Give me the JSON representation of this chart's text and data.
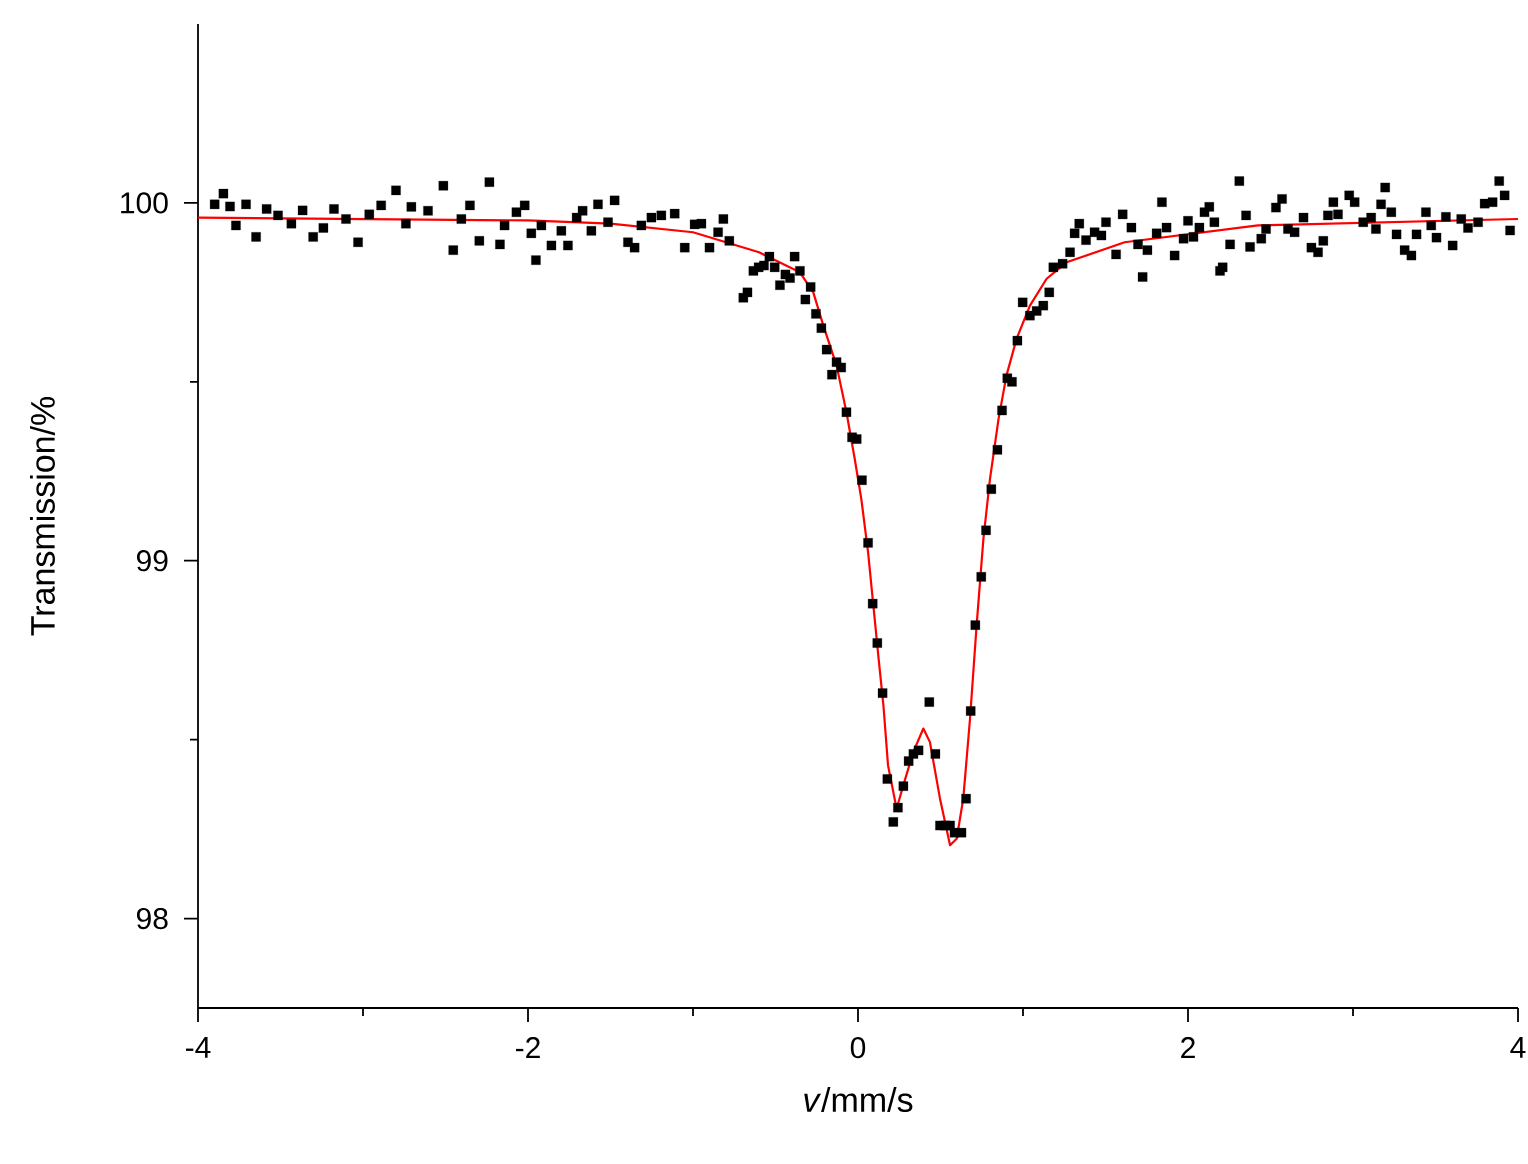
{
  "chart_data": {
    "type": "scatter",
    "xlabel": "*v*/mm/s",
    "ylabel": "Transmission/%",
    "xlim": [
      -4,
      4
    ],
    "ylim": [
      97.75,
      100.5
    ],
    "xticks": [
      -4,
      {
        "value": -3,
        "label": null
      },
      -2,
      {
        "value": -1,
        "label": null
      },
      0,
      {
        "value": 1,
        "label": null
      },
      2,
      {
        "value": 3,
        "label": null
      },
      4
    ],
    "yticks": [
      98,
      {
        "value": 98.5,
        "label": null
      },
      99,
      {
        "value": 99.5,
        "label": null
      },
      100
    ],
    "series": [
      {
        "color": "#000000",
        "marker": "square",
        "x": [
          -3.899,
          -3.846,
          -3.806,
          -3.77,
          -3.709,
          -3.648,
          -3.584,
          -3.515,
          -3.434,
          -3.366,
          -3.302,
          -3.24,
          -3.176,
          -3.103,
          -3.03,
          -2.962,
          -2.89,
          -2.8,
          -2.74,
          -2.707,
          -2.606,
          -2.513,
          -2.453,
          -2.404,
          -2.352,
          -2.295,
          -2.234,
          -2.17,
          -2.142,
          -2.07,
          -2.02,
          -1.98,
          -1.952,
          -1.919,
          -1.858,
          -1.798,
          -1.758,
          -1.705,
          -1.669,
          -1.616,
          -1.576,
          -1.515,
          -1.475,
          -1.394,
          -1.354,
          -1.313,
          -1.252,
          -1.192,
          -1.111,
          -1.05,
          -0.99,
          -0.949,
          -0.9,
          -0.848,
          -0.816,
          -0.78,
          -0.695,
          -0.67,
          -0.634,
          -0.602,
          -0.57,
          -0.537,
          -0.505,
          -0.473,
          -0.44,
          -0.412,
          -0.384,
          -0.352,
          -0.319,
          -0.287,
          -0.255,
          -0.222,
          -0.19,
          -0.158,
          -0.13,
          -0.102,
          -0.07,
          -0.036,
          -0.008,
          0.024,
          0.061,
          0.089,
          0.117,
          0.149,
          0.178,
          0.214,
          0.242,
          0.275,
          0.307,
          0.336,
          0.367,
          0.432,
          0.469,
          0.497,
          0.529,
          0.558,
          0.585,
          0.627,
          0.655,
          0.683,
          0.711,
          0.747,
          0.776,
          0.808,
          0.845,
          0.873,
          0.905,
          0.933,
          0.966,
          0.998,
          1.042,
          1.083,
          1.123,
          1.159,
          1.184,
          1.24,
          1.285,
          1.313,
          1.341,
          1.382,
          1.434,
          1.475,
          1.503,
          1.564,
          1.604,
          1.657,
          1.697,
          1.725,
          1.754,
          1.81,
          1.842,
          1.87,
          1.919,
          1.973,
          2.0,
          2.033,
          2.069,
          2.1,
          2.129,
          2.16,
          2.194,
          2.21,
          2.255,
          2.311,
          2.352,
          2.376,
          2.444,
          2.473,
          2.533,
          2.57,
          2.606,
          2.646,
          2.7,
          2.748,
          2.788,
          2.82,
          2.848,
          2.881,
          2.909,
          2.977,
          3.01,
          3.062,
          3.11,
          3.139,
          3.17,
          3.195,
          3.232,
          3.264,
          3.313,
          3.354,
          3.385,
          3.442,
          3.474,
          3.506,
          3.563,
          3.604,
          3.656,
          3.697,
          3.758,
          3.798,
          3.846,
          3.886,
          3.919,
          3.952
        ],
        "values": [
          99.996,
          100.026,
          99.99,
          99.937,
          99.996,
          99.905,
          99.983,
          99.965,
          99.942,
          99.979,
          99.905,
          99.93,
          99.983,
          99.955,
          99.89,
          99.968,
          99.993,
          100.035,
          99.942,
          99.989,
          99.978,
          100.048,
          99.868,
          99.955,
          99.993,
          99.894,
          100.058,
          99.884,
          99.937,
          99.974,
          99.993,
          99.915,
          99.84,
          99.937,
          99.881,
          99.922,
          99.881,
          99.959,
          99.978,
          99.922,
          99.996,
          99.946,
          100.007,
          99.89,
          99.875,
          99.937,
          99.959,
          99.965,
          99.97,
          99.875,
          99.94,
          99.942,
          99.875,
          99.918,
          99.955,
          99.894,
          99.735,
          99.75,
          99.81,
          99.82,
          99.825,
          99.85,
          99.82,
          99.77,
          99.8,
          99.79,
          99.85,
          99.81,
          99.73,
          99.765,
          99.69,
          99.65,
          99.59,
          99.52,
          99.555,
          99.54,
          99.415,
          99.345,
          99.34,
          99.225,
          99.05,
          98.88,
          98.77,
          98.63,
          98.39,
          98.27,
          98.31,
          98.37,
          98.44,
          98.46,
          98.47,
          98.605,
          98.46,
          98.26,
          98.26,
          98.26,
          98.24,
          98.24,
          98.335,
          98.58,
          98.82,
          98.955,
          99.085,
          99.2,
          99.31,
          99.42,
          99.51,
          99.5,
          99.615,
          99.722,
          99.685,
          99.698,
          99.713,
          99.75,
          99.82,
          99.83,
          99.862,
          99.915,
          99.942,
          99.896,
          99.918,
          99.909,
          99.946,
          99.856,
          99.968,
          99.931,
          99.884,
          99.793,
          99.868,
          99.915,
          100.002,
          99.931,
          99.853,
          99.9,
          99.95,
          99.905,
          99.931,
          99.974,
          99.989,
          99.946,
          99.81,
          99.82,
          99.884,
          100.061,
          99.965,
          99.877,
          99.9,
          99.927,
          99.987,
          100.011,
          99.927,
          99.918,
          99.959,
          99.875,
          99.862,
          99.894,
          99.965,
          100.002,
          99.968,
          100.021,
          100.002,
          99.946,
          99.959,
          99.927,
          99.996,
          100.043,
          99.974,
          99.912,
          99.868,
          99.853,
          99.912,
          99.974,
          99.937,
          99.903,
          99.961,
          99.881,
          99.955,
          99.93,
          99.946,
          99.998,
          100.002,
          100.061,
          100.021,
          99.923
        ]
      },
      {
        "type": "line",
        "color": "#ff0000",
        "marker": "none",
        "line_style": "solid",
        "x": [
          -4,
          -2,
          -1.5,
          -1,
          -0.6,
          -0.352,
          -0.271,
          -0.21,
          -0.13,
          -0.07,
          -0.02,
          0.02,
          0.061,
          0.093,
          0.125,
          0.154,
          0.182,
          0.234,
          0.275,
          0.335,
          0.396,
          0.436,
          0.497,
          0.558,
          0.598,
          0.638,
          0.679,
          0.719,
          0.76,
          0.8,
          0.852,
          0.9,
          0.961,
          1.042,
          1.143,
          1.264,
          1.616,
          2.424,
          4
        ],
        "values": [
          99.959,
          99.951,
          99.942,
          99.918,
          99.862,
          99.806,
          99.75,
          99.657,
          99.546,
          99.415,
          99.285,
          99.173,
          99.024,
          98.875,
          98.726,
          98.596,
          98.428,
          98.307,
          98.373,
          98.465,
          98.531,
          98.493,
          98.335,
          98.205,
          98.223,
          98.335,
          98.559,
          98.82,
          99.061,
          99.229,
          99.397,
          99.518,
          99.62,
          99.713,
          99.788,
          99.834,
          99.89,
          99.937,
          99.955
        ]
      }
    ]
  }
}
